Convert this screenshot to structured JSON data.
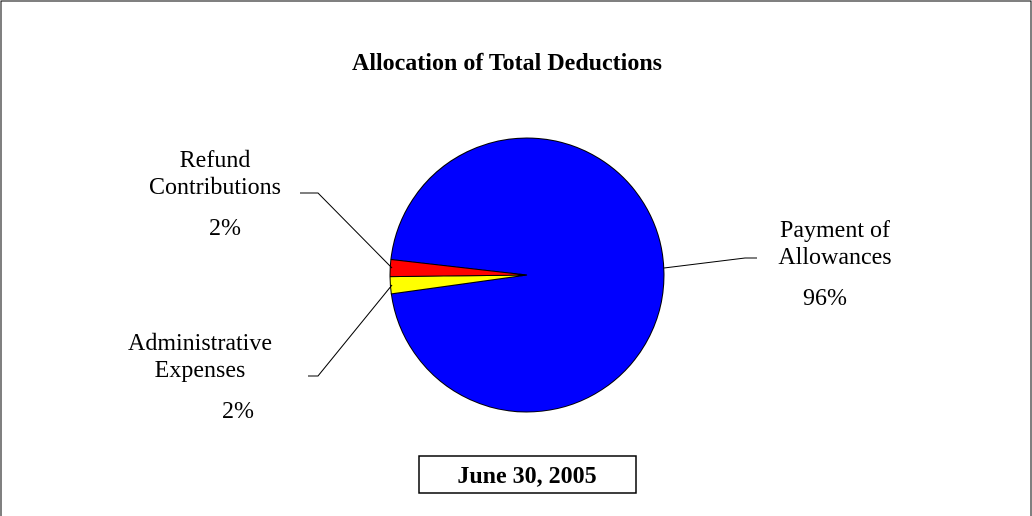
{
  "chart_data": {
    "type": "pie",
    "title": "Allocation of Total Deductions",
    "subtitle": "June 30, 2005",
    "categories": [
      "Refund Contributions",
      "Administrative Expenses",
      "Payment of Allowances"
    ],
    "values": [
      2,
      2,
      96
    ],
    "value_labels": [
      "2%",
      "2%",
      "96%"
    ],
    "colors": [
      "#ff0000",
      "#ffff00",
      "#0000ff"
    ]
  }
}
